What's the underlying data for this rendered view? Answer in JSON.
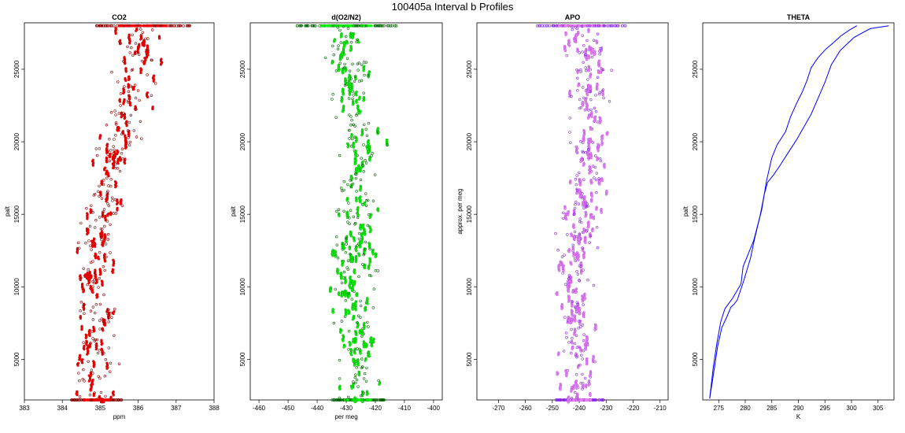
{
  "title": "100405a   Interval b Profiles",
  "chart_data": [
    {
      "type": "scatter",
      "title": "CO2",
      "xlabel": "ppm",
      "ylabel": "palt",
      "xlim": [
        383,
        388
      ],
      "ylim": [
        2200,
        28200
      ],
      "xticks": [
        383,
        384,
        385,
        386,
        387,
        388
      ],
      "yticks": [
        5000,
        10000,
        15000,
        20000,
        25000
      ],
      "color": "#ff0000",
      "edge_color": "#8b0000",
      "band": [
        [
          2200,
          384.9
        ],
        [
          6000,
          384.9
        ],
        [
          10000,
          385.0
        ],
        [
          13000,
          384.9
        ],
        [
          17000,
          385.2
        ],
        [
          20000,
          385.5
        ],
        [
          23000,
          385.8
        ],
        [
          26000,
          386.0
        ],
        [
          28000,
          386.1
        ]
      ],
      "series": [
        {
          "y_range": [
            2200,
            28000
          ],
          "x_spread": 0.55,
          "top_row_y": 28000,
          "bottom_row_y": 2200
        }
      ]
    },
    {
      "type": "scatter",
      "title": "d(O2/N2)",
      "xlabel": "per meg",
      "ylabel": "palt",
      "xlim": [
        -463,
        -397
      ],
      "ylim": [
        2200,
        28200
      ],
      "xticks": [
        -460,
        -450,
        -440,
        -430,
        -420,
        -410,
        -400
      ],
      "yticks": [
        5000,
        10000,
        15000,
        20000,
        25000
      ],
      "color": "#00ff00",
      "edge_color": "#006400",
      "band": [
        [
          2200,
          -426
        ],
        [
          6000,
          -425
        ],
        [
          10000,
          -428
        ],
        [
          13000,
          -427
        ],
        [
          17000,
          -428
        ],
        [
          20000,
          -424
        ],
        [
          23000,
          -428
        ],
        [
          26000,
          -430
        ],
        [
          28000,
          -430
        ]
      ],
      "series": [
        {
          "y_range": [
            2200,
            28000
          ],
          "x_spread": 7.5,
          "top_row_y": 28000,
          "bottom_row_y": 2200
        }
      ]
    },
    {
      "type": "scatter",
      "title": "APO",
      "xlabel": "",
      "ylabel": "approx. per meg",
      "xlim": [
        -278,
        -207
      ],
      "ylim": [
        2200,
        28200
      ],
      "xticks": [
        -270,
        -260,
        -250,
        -240,
        -230,
        -220,
        -210
      ],
      "yticks": [
        5000,
        10000,
        15000,
        20000,
        25000
      ],
      "color": "#ee82ee",
      "edge_color": "#8a2be2",
      "band": [
        [
          2200,
          -240
        ],
        [
          6000,
          -239
        ],
        [
          10000,
          -242
        ],
        [
          13000,
          -241
        ],
        [
          17000,
          -238
        ],
        [
          20000,
          -236
        ],
        [
          23000,
          -236
        ],
        [
          26000,
          -237
        ],
        [
          28000,
          -240
        ]
      ],
      "series": [
        {
          "y_range": [
            2200,
            28000
          ],
          "x_spread": 7.5,
          "top_row_y": 28000,
          "bottom_row_y": 2200
        }
      ]
    },
    {
      "type": "line",
      "title": "THETA",
      "xlabel": "K",
      "ylabel": "palt",
      "xlim": [
        272,
        308
      ],
      "ylim": [
        2200,
        28200
      ],
      "xticks": [
        275,
        280,
        285,
        290,
        295,
        300,
        305
      ],
      "yticks": [
        5000,
        10000,
        15000,
        20000,
        25000
      ],
      "color": "#0000ff",
      "series": [
        {
          "x": [
            273.3,
            274.0,
            274.6,
            275.4,
            276.2,
            277.2,
            277.6,
            279.2,
            279.6,
            281.6,
            283.1,
            284.0,
            285.0,
            286.0,
            287.6,
            288.5,
            289.6,
            290.7,
            291.6,
            292.4,
            293.7,
            295.2,
            296.5,
            298.0,
            299.6,
            301.0
          ],
          "y": [
            2300,
            4500,
            6000,
            7600,
            8500,
            9000,
            9200,
            10200,
            11400,
            13200,
            15300,
            17300,
            18900,
            19800,
            20700,
            21700,
            22600,
            23400,
            24200,
            25100,
            25800,
            26400,
            26800,
            27300,
            27700,
            28000
          ]
        },
        {
          "x": [
            273.3,
            274.2,
            274.8,
            275.6,
            276.5,
            277.3,
            277.9,
            278.5,
            279.7,
            281.0,
            281.8,
            282.8,
            283.6,
            284.2,
            285.3,
            286.6,
            288.0,
            289.6,
            291.0,
            292.4,
            293.7,
            295.0,
            296.2,
            297.9,
            300.5,
            303.5,
            307.0
          ],
          "y": [
            2300,
            4400,
            5900,
            7200,
            7900,
            8600,
            8800,
            9100,
            10400,
            12000,
            13400,
            14900,
            16400,
            17200,
            17700,
            18400,
            19200,
            20100,
            21000,
            21900,
            23000,
            24100,
            25300,
            26300,
            27200,
            27800,
            28000
          ]
        }
      ]
    }
  ]
}
